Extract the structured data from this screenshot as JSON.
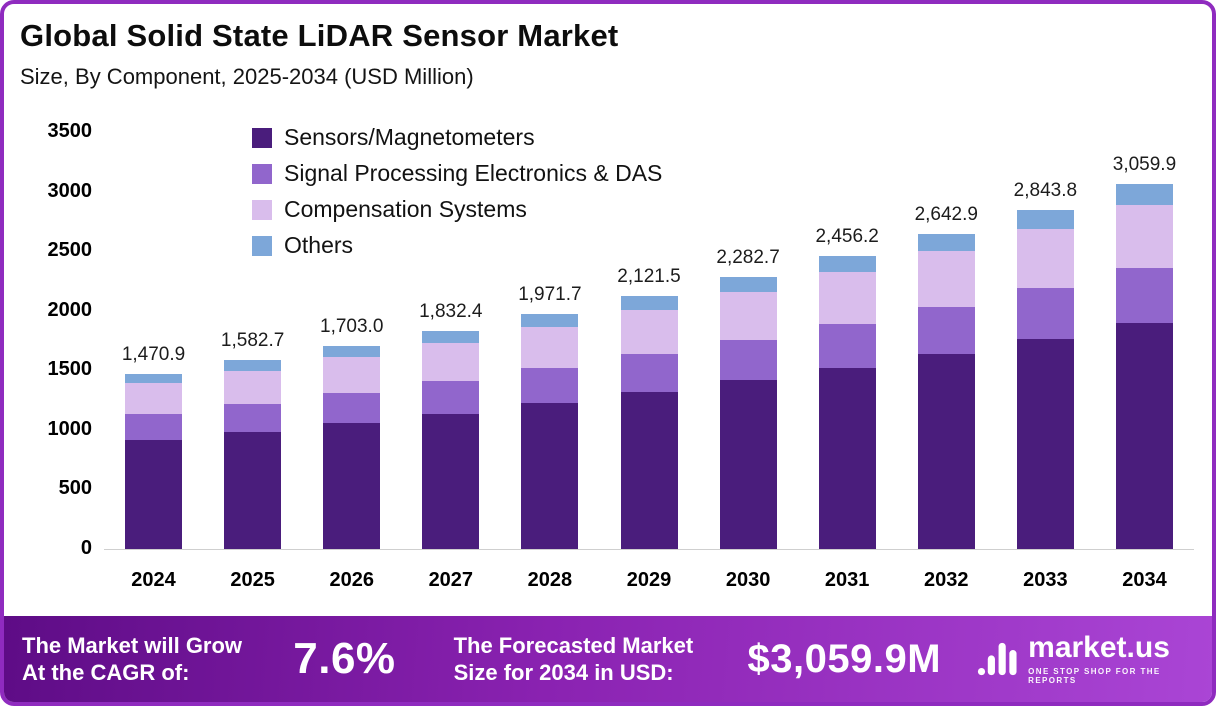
{
  "header": {
    "title": "Global Solid State LiDAR Sensor Market",
    "subtitle": "Size, By Component, 2025-2034 (USD Million)"
  },
  "chart_data": {
    "type": "bar",
    "stacked": true,
    "title": "Global Solid State LiDAR Sensor Market Size, By Component, 2025-2034 (USD Million)",
    "categories": [
      "2024",
      "2025",
      "2026",
      "2027",
      "2028",
      "2029",
      "2030",
      "2031",
      "2032",
      "2033",
      "2034"
    ],
    "totals": [
      1470.9,
      1582.7,
      1703.0,
      1832.4,
      1971.7,
      2121.5,
      2282.7,
      2456.2,
      2642.9,
      2843.8,
      3059.9
    ],
    "total_labels": [
      "1,470.9",
      "1,582.7",
      "1,703.0",
      "1,832.4",
      "1,971.7",
      "2,121.5",
      "2,282.7",
      "2,456.2",
      "2,642.9",
      "2,843.8",
      "3,059.9"
    ],
    "series": [
      {
        "name": "Sensors/Magnetometers",
        "color": "#4a1d7c",
        "values": [
          912,
          981,
          1056,
          1136,
          1222,
          1315,
          1415,
          1523,
          1639,
          1763,
          1897
        ]
      },
      {
        "name": "Signal Processing Electronics & DAS",
        "color": "#9166cc",
        "values": [
          221,
          237,
          255,
          275,
          296,
          318,
          342,
          368,
          396,
          427,
          459
        ]
      },
      {
        "name": "Compensation Systems",
        "color": "#d9bdec",
        "values": [
          257,
          277,
          298,
          321,
          345,
          371,
          399,
          430,
          463,
          498,
          535
        ]
      },
      {
        "name": "Others",
        "color": "#7da7d9",
        "values": [
          80.9,
          87.7,
          94.0,
          100.4,
          108.7,
          117.5,
          126.7,
          135.2,
          144.9,
          155.8,
          168.9
        ]
      }
    ],
    "xlabel": "",
    "ylabel": "",
    "ylim": [
      0,
      3500
    ],
    "yticks": [
      0,
      500,
      1000,
      1500,
      2000,
      2500,
      3000,
      3500
    ],
    "grid": false,
    "legend_position": "inside-top-left"
  },
  "footer": {
    "cagr_label": "The Market will Grow At the CAGR of:",
    "cagr_value": "7.6%",
    "forecast_label": "The Forecasted Market Size for 2034 in USD:",
    "forecast_value": "$3,059.9M",
    "brand": "market.us",
    "brand_tagline": "ONE STOP SHOP FOR THE REPORTS"
  }
}
